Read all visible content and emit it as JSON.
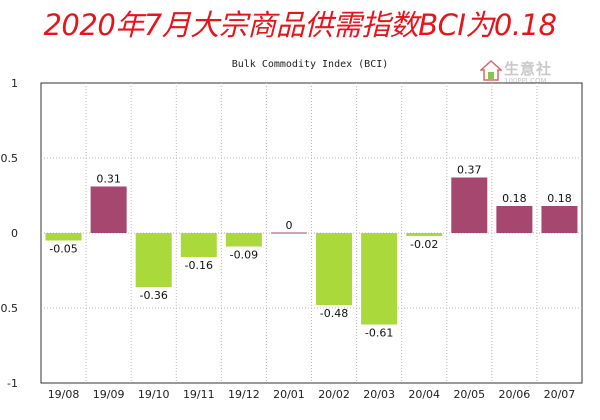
{
  "headline": "2020年7月大宗商品供需指数BCI为0.18",
  "watermark": {
    "name": "生意社",
    "url": "100PPI.COM",
    "icon": "house-logo-icon"
  },
  "chart_data": {
    "type": "bar",
    "title": "Bulk Commodity Index (BCI)",
    "categories": [
      "19/08",
      "19/09",
      "19/10",
      "19/11",
      "19/12",
      "20/01",
      "20/02",
      "20/03",
      "20/04",
      "20/05",
      "20/06",
      "20/07"
    ],
    "values": [
      -0.05,
      0.31,
      -0.36,
      -0.16,
      -0.09,
      0,
      -0.48,
      -0.61,
      -0.02,
      0.37,
      0.18,
      0.18
    ],
    "value_labels": [
      "-0.05",
      "0.31",
      "-0.36",
      "-0.16",
      "-0.09",
      "0",
      "-0.48",
      "-0.61",
      "-0.02",
      "0.37",
      "0.18",
      "0.18"
    ],
    "ylim": [
      -1,
      1
    ],
    "yticks": [
      1,
      0.5,
      0,
      -0.5,
      -1
    ],
    "ytick_labels": [
      "1",
      "0.5",
      "0",
      "-0.5",
      "-1"
    ],
    "grid": true,
    "colors": {
      "positive": "#a5476f",
      "negative": "#a9d93a",
      "zero": "#a5476f",
      "grid": "#b8b8b8",
      "axis": "#333333"
    }
  }
}
